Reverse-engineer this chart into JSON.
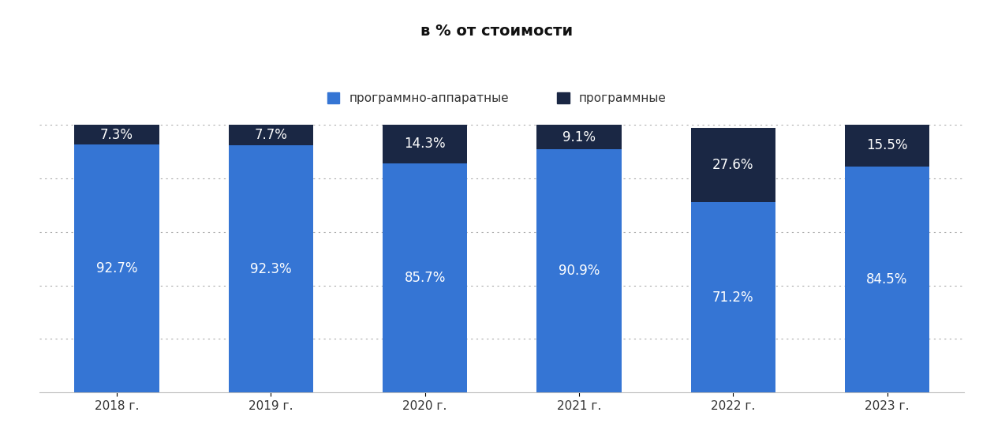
{
  "categories": [
    "2018 г.",
    "2019 г.",
    "2020 г.",
    "2021 г.",
    "2022 г.",
    "2023 г."
  ],
  "hardware_software": [
    92.7,
    92.3,
    85.7,
    90.9,
    71.2,
    84.5
  ],
  "software": [
    7.3,
    7.7,
    14.3,
    9.1,
    27.6,
    15.5
  ],
  "color_hardware": "#3575d4",
  "color_software": "#1a2744",
  "title": "в % от стоимости",
  "legend_hardware": "программно-аппаратные",
  "legend_software": "программные",
  "bar_width": 0.55,
  "ylim": [
    0,
    100
  ],
  "title_fontsize": 14,
  "label_fontsize": 12,
  "tick_fontsize": 11,
  "legend_fontsize": 11,
  "bg_color": "#ffffff",
  "text_color_light": "#ffffff",
  "grid_color": "#aaaaaa"
}
